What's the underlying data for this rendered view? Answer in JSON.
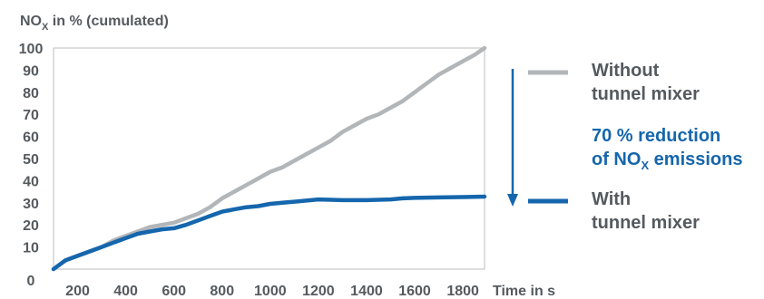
{
  "chart_data": {
    "type": "line",
    "ylabel": "NOx in % (cumulated)",
    "ylabel_parts": {
      "main": "NO",
      "sub": "X",
      "rest": " in % (cumulated)"
    },
    "xlabel": "Time in s",
    "xlim": [
      100,
      1890
    ],
    "ylim": [
      0,
      100
    ],
    "xticks": [
      200,
      400,
      600,
      800,
      1000,
      1200,
      1400,
      1600,
      1800
    ],
    "yticks": [
      0,
      10,
      20,
      30,
      40,
      50,
      60,
      70,
      80,
      90,
      100
    ],
    "grid": false,
    "legend_position": "right",
    "series": [
      {
        "name": "Without tunnel mixer",
        "name_lines": [
          "Without",
          "tunnel mixer"
        ],
        "color": "#b3b6b9",
        "x": [
          100,
          150,
          200,
          250,
          300,
          350,
          400,
          450,
          500,
          550,
          600,
          650,
          700,
          750,
          800,
          850,
          900,
          950,
          1000,
          1050,
          1100,
          1150,
          1200,
          1250,
          1300,
          1350,
          1400,
          1450,
          1500,
          1550,
          1600,
          1650,
          1700,
          1750,
          1800,
          1850,
          1890
        ],
        "y": [
          0,
          4,
          6,
          8,
          10,
          13,
          15,
          17,
          19,
          20,
          21,
          23,
          25,
          28,
          32,
          35,
          38,
          41,
          44,
          46,
          49,
          52,
          55,
          58,
          62,
          65,
          68,
          70,
          73,
          76,
          80,
          84,
          88,
          91,
          94,
          97,
          100
        ]
      },
      {
        "name": "With tunnel mixer",
        "name_lines": [
          "With",
          "tunnel mixer"
        ],
        "color": "#1566ad",
        "x": [
          100,
          150,
          200,
          250,
          300,
          350,
          400,
          450,
          500,
          550,
          600,
          650,
          700,
          750,
          800,
          850,
          900,
          950,
          1000,
          1050,
          1100,
          1150,
          1200,
          1300,
          1400,
          1500,
          1550,
          1600,
          1700,
          1800,
          1890
        ],
        "y": [
          0,
          4,
          6,
          8,
          10,
          12,
          14,
          16,
          17,
          18,
          18.5,
          20,
          22,
          24,
          26,
          27,
          28,
          28.5,
          29.5,
          30,
          30.5,
          31,
          31.5,
          31.2,
          31.2,
          31.5,
          32,
          32.2,
          32.4,
          32.6,
          32.8
        ]
      }
    ],
    "annotations": [
      {
        "lines": [
          {
            "main": "70 % reduction",
            "sub": "",
            "rest": ""
          },
          {
            "main": "of NO",
            "sub": "X",
            "rest": " emissions"
          }
        ],
        "color": "#1566ad",
        "arrow": "down"
      }
    ]
  }
}
